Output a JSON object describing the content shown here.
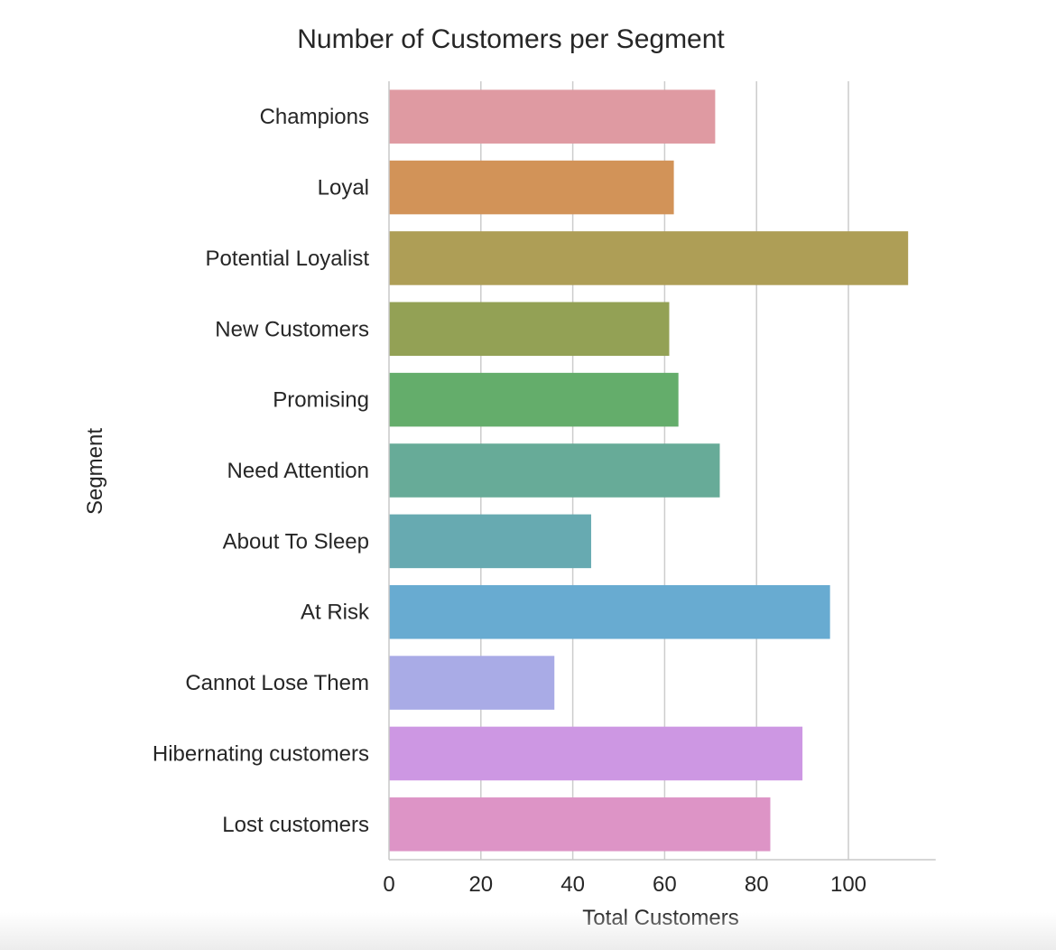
{
  "chart_data": {
    "type": "bar",
    "orientation": "horizontal",
    "title": "Number of Customers per Segment",
    "xlabel": "Total Customers",
    "ylabel": "Segment",
    "xlim": [
      0,
      119
    ],
    "xticks": [
      0,
      20,
      40,
      60,
      80,
      100
    ],
    "grid": "vertical",
    "categories": [
      "Champions",
      "Loyal",
      "Potential Loyalist",
      "New Customers",
      "Promising",
      "Need Attention",
      "About To Sleep",
      "At Risk",
      "Cannot Lose Them",
      "Hibernating customers",
      "Lost customers"
    ],
    "values": [
      71,
      62,
      113,
      61,
      63,
      72,
      44,
      96,
      36,
      90,
      83
    ],
    "colors": [
      "#df9aa2",
      "#d29358",
      "#ae9e56",
      "#93a155",
      "#64ad6b",
      "#67ab98",
      "#67aab1",
      "#68abd1",
      "#a9abe6",
      "#cd97e3",
      "#dd94c6"
    ]
  }
}
